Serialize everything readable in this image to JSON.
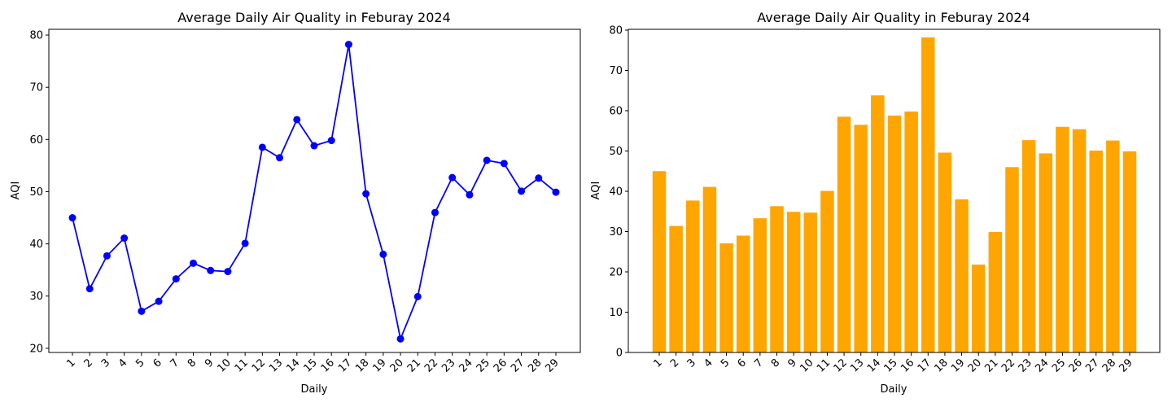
{
  "chart_data": [
    {
      "type": "line",
      "title": "Average Daily Air Quality in Feburay 2024",
      "xlabel": "Daily",
      "ylabel": "AQI",
      "categories": [
        "1",
        "2",
        "3",
        "4",
        "5",
        "6",
        "7",
        "8",
        "9",
        "10",
        "11",
        "12",
        "13",
        "14",
        "15",
        "16",
        "17",
        "18",
        "19",
        "20",
        "21",
        "22",
        "23",
        "24",
        "25",
        "26",
        "27",
        "28",
        "29"
      ],
      "values": [
        45.0,
        31.4,
        37.7,
        41.1,
        27.1,
        29.0,
        33.3,
        36.3,
        34.9,
        34.7,
        40.1,
        58.5,
        56.5,
        63.8,
        58.8,
        59.8,
        78.2,
        49.6,
        38.0,
        21.8,
        29.9,
        46.0,
        52.7,
        49.4,
        56.0,
        55.4,
        50.1,
        52.6,
        49.9
      ],
      "yticks": [
        20,
        30,
        40,
        50,
        60,
        70,
        80
      ],
      "ylim": [
        19.2,
        81.1
      ],
      "color": "#0000ff",
      "marker": "circle",
      "grid": false
    },
    {
      "type": "bar",
      "title": "Average Daily Air Quality in Feburay 2024",
      "xlabel": "Daily",
      "ylabel": "AQI",
      "categories": [
        "1",
        "2",
        "3",
        "4",
        "5",
        "6",
        "7",
        "8",
        "9",
        "10",
        "11",
        "12",
        "13",
        "14",
        "15",
        "16",
        "17",
        "18",
        "19",
        "20",
        "21",
        "22",
        "23",
        "24",
        "25",
        "26",
        "27",
        "28",
        "29"
      ],
      "values": [
        45.0,
        31.4,
        37.7,
        41.1,
        27.1,
        29.0,
        33.3,
        36.3,
        34.9,
        34.7,
        40.1,
        58.5,
        56.5,
        63.8,
        58.8,
        59.8,
        78.2,
        49.6,
        38.0,
        21.8,
        29.9,
        46.0,
        52.7,
        49.4,
        56.0,
        55.4,
        50.1,
        52.6,
        49.9
      ],
      "yticks": [
        0,
        10,
        20,
        30,
        40,
        50,
        60,
        70,
        80
      ],
      "ylim": [
        0,
        80.2
      ],
      "color": "#ffa500",
      "grid": false
    }
  ]
}
